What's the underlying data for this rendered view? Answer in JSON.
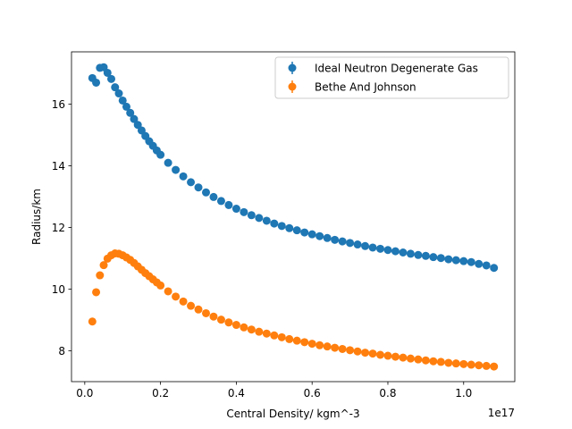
{
  "chart_data": {
    "type": "scatter",
    "title": "",
    "xlabel": "Central Density/ kgm^-3",
    "ylabel": "Radius/km",
    "x_offset_label": "1e17",
    "x_scale": 1e+17,
    "xlim": [
      -0.035,
      1.135
    ],
    "ylim": [
      7.0,
      17.7
    ],
    "x_ticks": [
      0.0,
      0.2,
      0.4,
      0.6,
      0.8,
      1.0
    ],
    "x_tick_labels": [
      "0.0",
      "0.2",
      "0.4",
      "0.6",
      "0.8",
      "1.0"
    ],
    "y_ticks": [
      8,
      10,
      12,
      14,
      16
    ],
    "y_tick_labels": [
      "8",
      "10",
      "12",
      "14",
      "16"
    ],
    "grid": false,
    "legend_position": "top-right",
    "error_bars": true,
    "series": [
      {
        "name": "Ideal Neutron Degenerate Gas",
        "color": "#1f77b4",
        "x": [
          0.02,
          0.03,
          0.04,
          0.05,
          0.06,
          0.07,
          0.08,
          0.09,
          0.1,
          0.11,
          0.12,
          0.13,
          0.14,
          0.15,
          0.16,
          0.17,
          0.18,
          0.19,
          0.2,
          0.22,
          0.24,
          0.26,
          0.28,
          0.3,
          0.32,
          0.34,
          0.36,
          0.38,
          0.4,
          0.42,
          0.44,
          0.46,
          0.48,
          0.5,
          0.52,
          0.54,
          0.56,
          0.58,
          0.6,
          0.62,
          0.64,
          0.66,
          0.68,
          0.7,
          0.72,
          0.74,
          0.76,
          0.78,
          0.8,
          0.82,
          0.84,
          0.86,
          0.88,
          0.9,
          0.92,
          0.94,
          0.96,
          0.98,
          1.0,
          1.02,
          1.04,
          1.06,
          1.08
        ],
        "y": [
          16.85,
          16.7,
          17.18,
          17.2,
          17.02,
          16.82,
          16.55,
          16.35,
          16.12,
          15.92,
          15.72,
          15.52,
          15.33,
          15.15,
          14.97,
          14.8,
          14.65,
          14.5,
          14.36,
          14.1,
          13.87,
          13.66,
          13.47,
          13.3,
          13.14,
          12.99,
          12.86,
          12.73,
          12.61,
          12.5,
          12.4,
          12.31,
          12.22,
          12.13,
          12.05,
          11.98,
          11.91,
          11.84,
          11.78,
          11.72,
          11.66,
          11.6,
          11.55,
          11.5,
          11.45,
          11.4,
          11.35,
          11.31,
          11.27,
          11.23,
          11.19,
          11.15,
          11.11,
          11.08,
          11.04,
          11.01,
          10.97,
          10.94,
          10.91,
          10.88,
          10.82,
          10.77,
          10.69
        ]
      },
      {
        "name": "Bethe And Johnson",
        "color": "#ff7f0e",
        "x": [
          0.02,
          0.03,
          0.04,
          0.05,
          0.06,
          0.07,
          0.08,
          0.09,
          0.1,
          0.11,
          0.12,
          0.13,
          0.14,
          0.15,
          0.16,
          0.17,
          0.18,
          0.19,
          0.2,
          0.22,
          0.24,
          0.26,
          0.28,
          0.3,
          0.32,
          0.34,
          0.36,
          0.38,
          0.4,
          0.42,
          0.44,
          0.46,
          0.48,
          0.5,
          0.52,
          0.54,
          0.56,
          0.58,
          0.6,
          0.62,
          0.64,
          0.66,
          0.68,
          0.7,
          0.72,
          0.74,
          0.76,
          0.78,
          0.8,
          0.82,
          0.84,
          0.86,
          0.88,
          0.9,
          0.92,
          0.94,
          0.96,
          0.98,
          1.0,
          1.02,
          1.04,
          1.06,
          1.08
        ],
        "y": [
          8.95,
          9.9,
          10.45,
          10.78,
          10.99,
          11.1,
          11.16,
          11.15,
          11.1,
          11.03,
          10.95,
          10.85,
          10.74,
          10.63,
          10.52,
          10.42,
          10.32,
          10.22,
          10.12,
          9.93,
          9.76,
          9.6,
          9.46,
          9.34,
          9.22,
          9.11,
          9.01,
          8.92,
          8.84,
          8.76,
          8.69,
          8.62,
          8.56,
          8.5,
          8.44,
          8.38,
          8.33,
          8.28,
          8.23,
          8.18,
          8.14,
          8.1,
          8.06,
          8.02,
          7.98,
          7.94,
          7.91,
          7.87,
          7.84,
          7.81,
          7.78,
          7.75,
          7.72,
          7.69,
          7.66,
          7.64,
          7.61,
          7.59,
          7.57,
          7.55,
          7.53,
          7.51,
          7.49
        ]
      }
    ]
  }
}
